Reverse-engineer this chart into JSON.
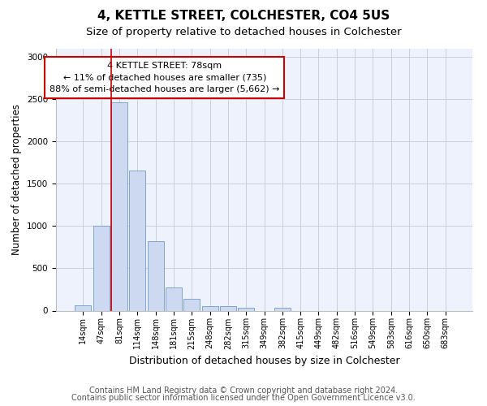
{
  "title": "4, KETTLE STREET, COLCHESTER, CO4 5US",
  "subtitle": "Size of property relative to detached houses in Colchester",
  "xlabel": "Distribution of detached houses by size in Colchester",
  "ylabel": "Number of detached properties",
  "bar_values": [
    60,
    1000,
    2470,
    1660,
    825,
    270,
    135,
    55,
    50,
    35,
    0,
    30,
    0,
    0,
    0,
    0,
    0,
    0,
    0,
    0,
    0
  ],
  "bar_labels": [
    "14sqm",
    "47sqm",
    "81sqm",
    "114sqm",
    "148sqm",
    "181sqm",
    "215sqm",
    "248sqm",
    "282sqm",
    "315sqm",
    "349sqm",
    "382sqm",
    "415sqm",
    "449sqm",
    "482sqm",
    "516sqm",
    "549sqm",
    "583sqm",
    "616sqm",
    "650sqm",
    "683sqm"
  ],
  "bar_color": "#ccd9f0",
  "bar_edge_color": "#7399c6",
  "vline_index": 2,
  "vline_color": "#cc0000",
  "annotation_text": "4 KETTLE STREET: 78sqm\n← 11% of detached houses are smaller (735)\n88% of semi-detached houses are larger (5,662) →",
  "annotation_box_color": "#cc0000",
  "ylim": [
    0,
    3100
  ],
  "yticks": [
    0,
    500,
    1000,
    1500,
    2000,
    2500,
    3000
  ],
  "footer1": "Contains HM Land Registry data © Crown copyright and database right 2024.",
  "footer2": "Contains public sector information licensed under the Open Government Licence v3.0.",
  "bg_color": "#eef2fc",
  "grid_color": "#c8cedf",
  "title_fontsize": 11,
  "subtitle_fontsize": 9.5,
  "xlabel_fontsize": 9,
  "ylabel_fontsize": 8.5,
  "tick_fontsize": 7,
  "annotation_fontsize": 8,
  "footer_fontsize": 7
}
